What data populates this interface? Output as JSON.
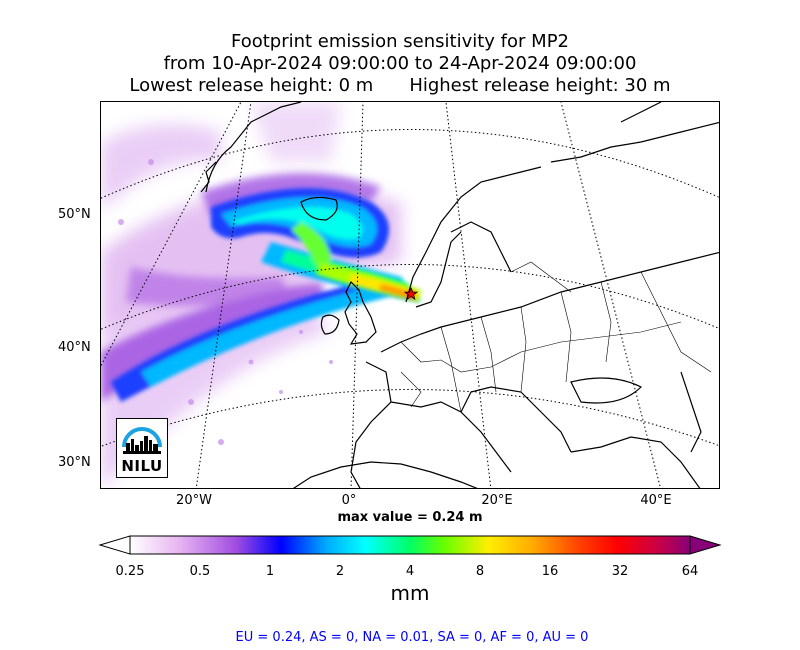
{
  "title": {
    "line1": "Footprint emission sensitivity for MP2",
    "line2": "from 10-Apr-2024 09:00:00 to 24-Apr-2024 09:00:00",
    "lowest": "Lowest release height: 0 m",
    "highest": "Highest release height: 30 m"
  },
  "map": {
    "lat_labels": [
      "50°N",
      "40°N",
      "30°N"
    ],
    "lon_labels": [
      "20°W",
      "0°",
      "20°E",
      "40°E"
    ],
    "gridlines": "dotted",
    "coastline_color": "#000000",
    "release_marker": "star-icon",
    "logo_text": "NILU",
    "logo_color": "#1aa3e0"
  },
  "max_value": "max value = 0.24 m",
  "colorbar": {
    "ticks": [
      "0.25",
      "0.5",
      "1",
      "2",
      "4",
      "8",
      "16",
      "32",
      "64"
    ],
    "unit": "mm",
    "colors": [
      "#ffffff",
      "#e6b3f0",
      "#a04ce0",
      "#0000ff",
      "#00aaff",
      "#00ffff",
      "#00ff66",
      "#66ff00",
      "#ffee00",
      "#ffaa00",
      "#ff4400",
      "#ff0000",
      "#cc0044",
      "#880077"
    ],
    "extend": "both"
  },
  "footer": "EU = 0.24,  AS = 0,  NA = 0.01,  SA = 0,  AF = 0,  AU = 0"
}
